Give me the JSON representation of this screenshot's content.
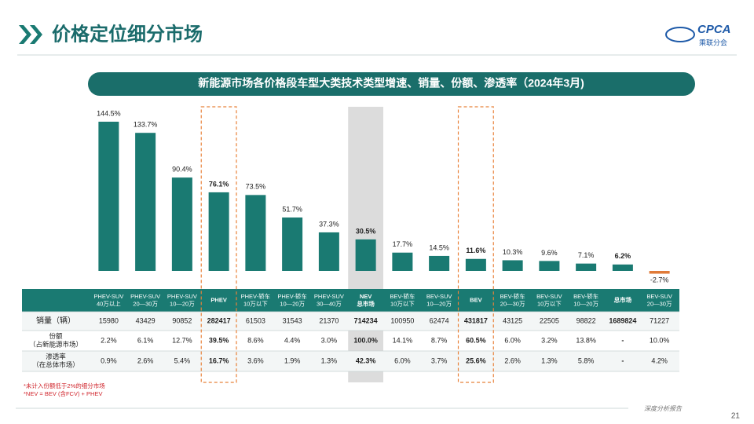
{
  "header": {
    "title": "价格定位细分市场",
    "logo_text": "CPCA",
    "logo_subtext": "乘联分会"
  },
  "chart_data": {
    "type": "bar",
    "title": "新能源市场各价格段车型大类技术类型增速、销量、份额、渗透率（2024年3月)",
    "categories": [
      "PHEV-SUV\n40万以上",
      "PHEV-SUV\n20—30万",
      "PHEV-SUV\n10—20万",
      "PHEV",
      "PHEV-轿车\n10万以下",
      "PHEV-轿车\n10—20万",
      "PHEV-SUV\n30—40万",
      "NEV\n总市场",
      "BEV-轿车\n10万以下",
      "BEV-SUV\n10—20万",
      "BEV",
      "BEV-轿车\n20—30万",
      "BEV-SUV\n10万以下",
      "BEV-轿车\n10—20万",
      "总市场",
      "BEV-SUV\n20—30万"
    ],
    "values": [
      144.5,
      133.7,
      90.4,
      76.1,
      73.5,
      51.7,
      37.3,
      30.5,
      17.7,
      14.5,
      11.6,
      10.3,
      9.6,
      7.1,
      6.2,
      -2.7
    ],
    "value_labels": [
      "144.5%",
      "133.7%",
      "90.4%",
      "76.1%",
      "73.5%",
      "51.7%",
      "37.3%",
      "30.5%",
      "17.7%",
      "14.5%",
      "11.6%",
      "10.3%",
      "9.6%",
      "7.1%",
      "6.2%",
      "-2.7%"
    ],
    "color": "#1a7a72",
    "negative_color": "#e07b39",
    "emphasis": [
      3,
      7,
      10,
      14
    ]
  },
  "table": {
    "rows": [
      {
        "label": "销量（辆）",
        "cells": [
          15980,
          43429,
          90852,
          282417,
          61503,
          31543,
          21370,
          714234,
          100950,
          62474,
          431817,
          43125,
          22505,
          98822,
          1689824,
          71227
        ]
      },
      {
        "label": "份额\n（占新能源市场）",
        "cells": [
          "2.2%",
          "6.1%",
          "12.7%",
          "39.5%",
          "8.6%",
          "4.4%",
          "3.0%",
          "100.0%",
          "14.1%",
          "8.7%",
          "60.5%",
          "6.0%",
          "3.2%",
          "13.8%",
          "-",
          "10.0%"
        ]
      },
      {
        "label": "渗透率\n（在总体市场）",
        "cells": [
          "0.9%",
          "2.6%",
          "5.4%",
          "16.7%",
          "3.6%",
          "1.9%",
          "1.3%",
          "42.3%",
          "6.0%",
          "3.7%",
          "25.6%",
          "2.6%",
          "1.3%",
          "5.8%",
          "-",
          "4.2%"
        ]
      }
    ]
  },
  "footnotes": [
    "*未计入份额低于2%的细分市场",
    "*NEV = BEV (含FCV) + PHEV"
  ],
  "footer": {
    "report": "深度分析报告",
    "page": "21"
  }
}
